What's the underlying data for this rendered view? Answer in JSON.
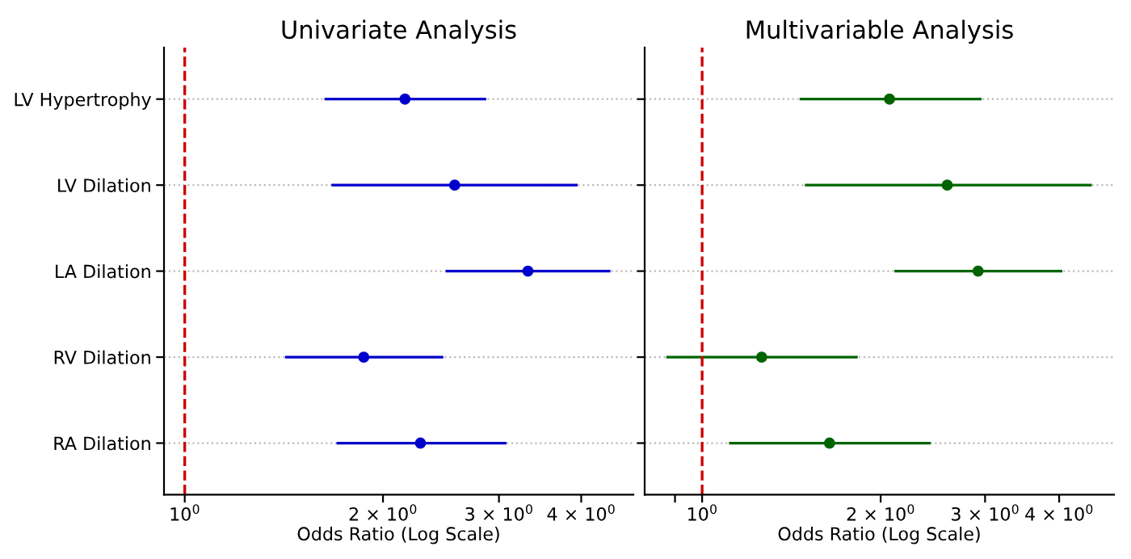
{
  "chart_data": [
    {
      "type": "scatter",
      "title": "Univariate Analysis",
      "xlabel": "Odds Ratio (Log Scale)",
      "orientation": "horizontal",
      "log": "x",
      "marker": "circle",
      "grid": "y",
      "categories": [
        "LV Hypertrophy",
        "LV Dilation",
        "LA Dilation",
        "RV Dilation",
        "RA Dilation"
      ],
      "series": [
        {
          "color": "#0000cc",
          "values": [
            2.16,
            2.57,
            3.32,
            1.87,
            2.28
          ],
          "errors": [
            [
              1.63,
              2.87
            ],
            [
              1.67,
              3.95
            ],
            [
              2.49,
              4.43
            ],
            [
              1.42,
              2.47
            ],
            [
              1.7,
              3.08
            ]
          ]
        }
      ],
      "xlim": [
        0.93,
        4.8
      ],
      "xticks": [
        {
          "value": 1,
          "label": "10$^{0}$"
        },
        {
          "value": 2,
          "label": "2 × 10$^{0}$"
        },
        {
          "value": 3,
          "label": "3 × 10$^{0}$"
        },
        {
          "value": 4,
          "label": "4 × 10$^{0}$"
        }
      ],
      "ref_lines": [
        {
          "axis": "x",
          "value": 1,
          "color": "#cc0000",
          "line_style": "dashed"
        }
      ]
    },
    {
      "type": "scatter",
      "title": "Multivariable Analysis",
      "xlabel": "Odds Ratio (Log Scale)",
      "orientation": "horizontal",
      "log": "x",
      "marker": "circle",
      "grid": "y",
      "tick_labels": "x",
      "categories": [
        null,
        null,
        null,
        null,
        null
      ],
      "series": [
        {
          "color": "#006400",
          "values": [
            2.07,
            2.59,
            2.92,
            1.26,
            1.64
          ],
          "errors": [
            [
              1.46,
              2.96
            ],
            [
              1.49,
              4.54
            ],
            [
              2.11,
              4.05
            ],
            [
              0.87,
              1.83
            ],
            [
              1.11,
              2.43
            ]
          ]
        }
      ],
      "xlim": [
        0.8,
        4.95
      ],
      "xticks": [
        {
          "value": 0.9,
          "label": null
        },
        {
          "value": 1,
          "label": "10$^{0}$"
        },
        {
          "value": 2,
          "label": "2 × 10$^{0}$"
        },
        {
          "value": 3,
          "label": "3 × 10$^{0}$"
        },
        {
          "value": 4,
          "label": "4 × 10$^{0}$"
        }
      ],
      "ref_lines": [
        {
          "axis": "x",
          "value": 1,
          "color": "#cc0000",
          "line_style": "dashed"
        }
      ]
    }
  ]
}
